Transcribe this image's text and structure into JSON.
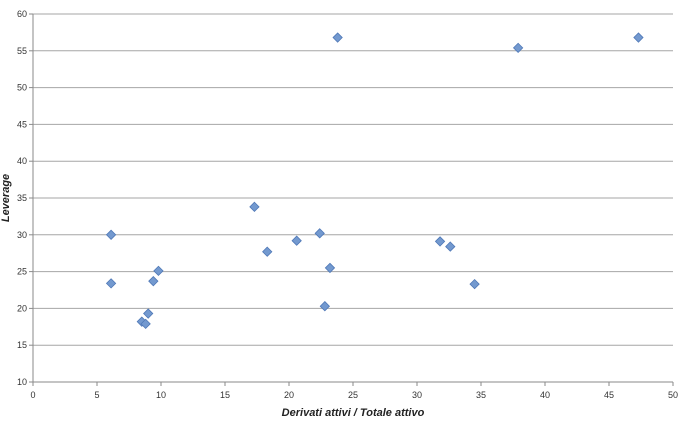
{
  "chart_data": {
    "type": "scatter",
    "title": "",
    "xlabel": "Derivati attivi / Totale attivo",
    "ylabel": "Leverage",
    "xlim": [
      0,
      50
    ],
    "ylim": [
      10,
      60
    ],
    "xticks": [
      0,
      5,
      10,
      15,
      20,
      25,
      30,
      35,
      40,
      45,
      50
    ],
    "yticks": [
      10,
      15,
      20,
      25,
      30,
      35,
      40,
      45,
      50,
      55,
      60
    ],
    "grid": "horizontal",
    "legend": "none",
    "marker": "diamond",
    "marker_color": "#7399cf",
    "marker_edge": "#4f78b7",
    "points": [
      {
        "x": 6.1,
        "y": 30.0
      },
      {
        "x": 6.1,
        "y": 23.4
      },
      {
        "x": 8.5,
        "y": 18.2
      },
      {
        "x": 8.8,
        "y": 17.9
      },
      {
        "x": 9.0,
        "y": 19.3
      },
      {
        "x": 9.4,
        "y": 23.7
      },
      {
        "x": 9.8,
        "y": 25.1
      },
      {
        "x": 17.3,
        "y": 33.8
      },
      {
        "x": 18.3,
        "y": 27.7
      },
      {
        "x": 20.6,
        "y": 29.2
      },
      {
        "x": 22.4,
        "y": 30.2
      },
      {
        "x": 22.8,
        "y": 20.3
      },
      {
        "x": 23.2,
        "y": 25.5
      },
      {
        "x": 23.8,
        "y": 56.8
      },
      {
        "x": 31.8,
        "y": 29.1
      },
      {
        "x": 32.6,
        "y": 28.4
      },
      {
        "x": 34.5,
        "y": 23.3
      },
      {
        "x": 37.9,
        "y": 55.4
      },
      {
        "x": 47.3,
        "y": 56.8
      }
    ]
  }
}
